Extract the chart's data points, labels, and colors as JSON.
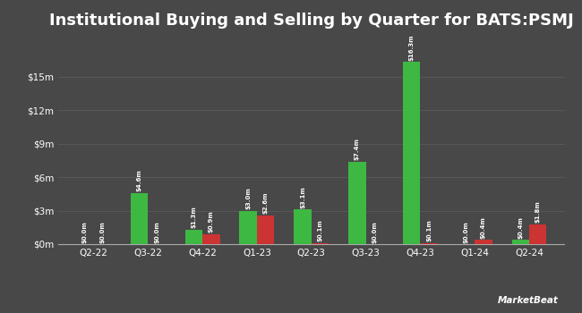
{
  "title": "Institutional Buying and Selling by Quarter for BATS:PSMJ",
  "quarters": [
    "Q2-22",
    "Q3-22",
    "Q4-22",
    "Q1-23",
    "Q2-23",
    "Q3-23",
    "Q4-23",
    "Q1-24",
    "Q2-24"
  ],
  "inflows": [
    0.0,
    4.6,
    1.3,
    3.0,
    3.1,
    7.4,
    16.3,
    0.0,
    0.4
  ],
  "outflows": [
    0.0,
    0.0,
    0.9,
    2.6,
    0.1,
    0.0,
    0.1,
    0.4,
    1.8
  ],
  "inflow_labels": [
    "$0.0m",
    "$0.0m",
    "$4.6m",
    "$0.0m",
    "$1.3m",
    "$0.9m",
    "$3.0m",
    "$2.6m",
    "$3.1m",
    "$0.1m",
    "$7.4m",
    "$0.0m",
    "$16.3m",
    "$0.1m",
    "$0.0m",
    "$0.4m",
    "$0.4m",
    "$1.8m"
  ],
  "bar_inflow_labels": [
    "$0.0m",
    "$4.6m",
    "$1.3m",
    "$3.0m",
    "$3.1m",
    "$7.4m",
    "$16.3m",
    "$0.0m",
    "$0.4m"
  ],
  "bar_outflow_labels": [
    "$0.0m",
    "$0.0m",
    "$0.9m",
    "$2.6m",
    "$0.1m",
    "$0.0m",
    "$0.1m",
    "$0.4m",
    "$1.8m"
  ],
  "inflow_color": "#3db843",
  "outflow_color": "#cc3333",
  "background_color": "#484848",
  "text_color": "#ffffff",
  "grid_color": "#5a5a5a",
  "ylabel_ticks": [
    "$0m",
    "$3m",
    "$6m",
    "$9m",
    "$12m",
    "$15m"
  ],
  "ytick_vals": [
    0,
    3,
    6,
    9,
    12,
    15
  ],
  "ylim": [
    0,
    18.5
  ],
  "bar_width": 0.32,
  "title_fontsize": 13
}
